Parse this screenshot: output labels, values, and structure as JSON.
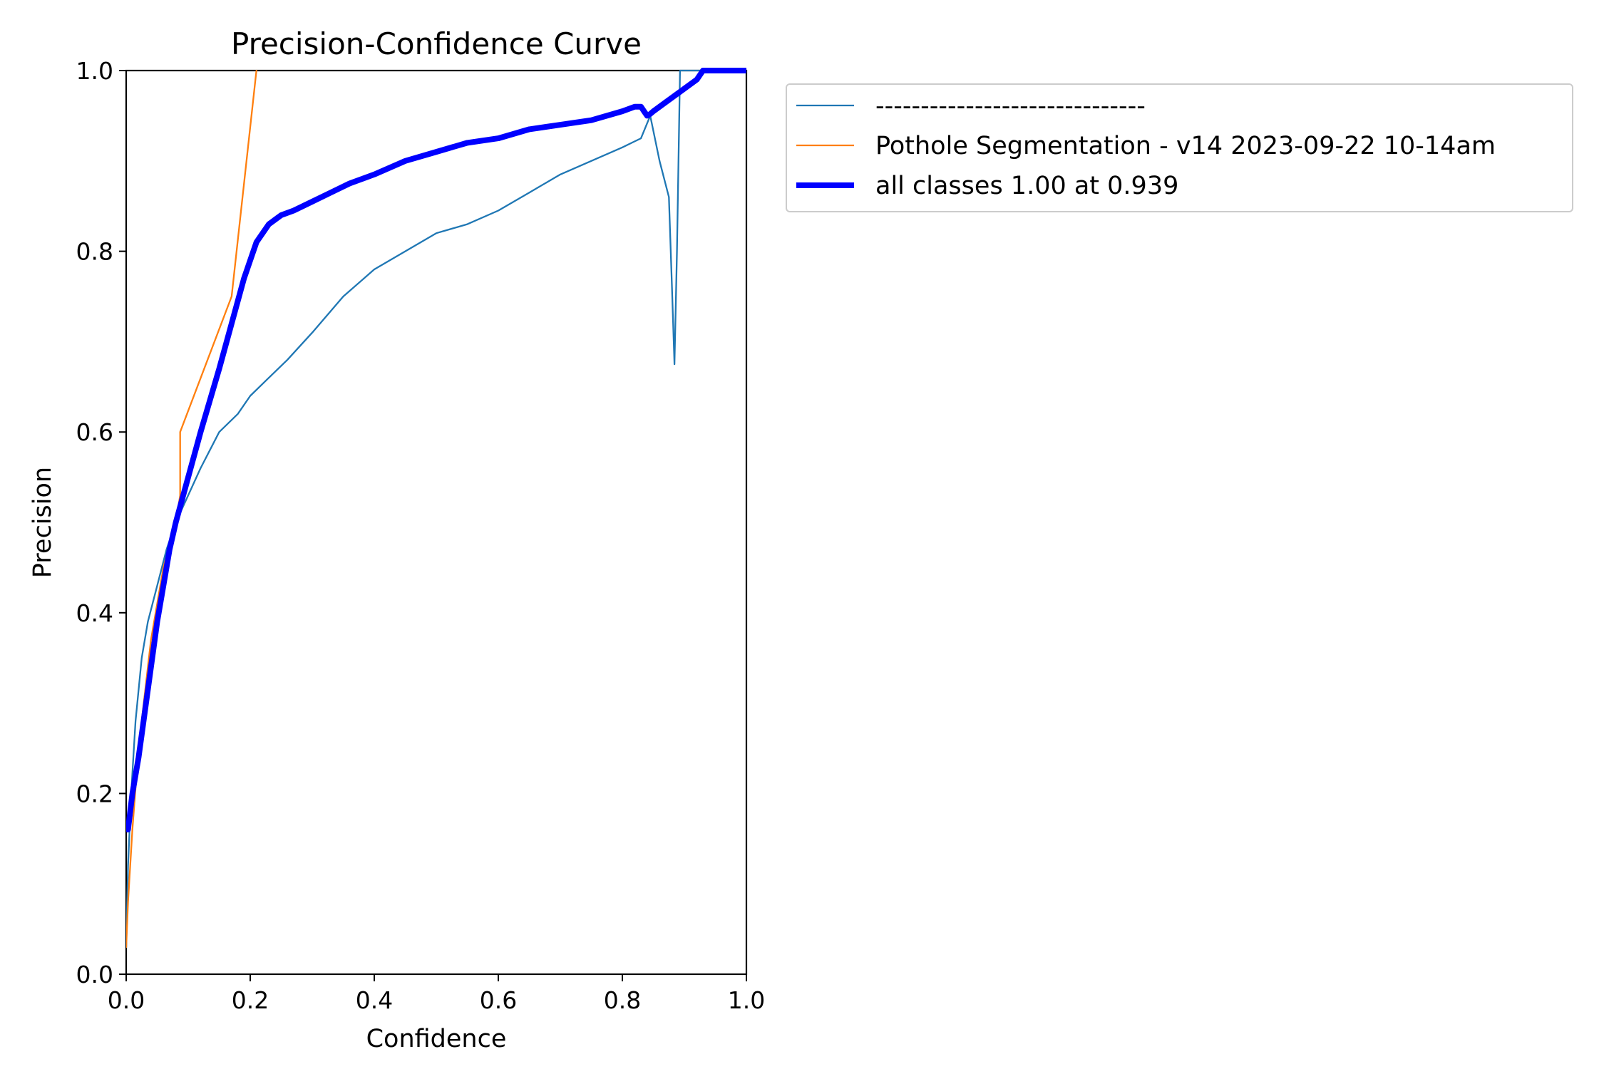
{
  "chart_data": {
    "type": "line",
    "title": "Precision-Confidence Curve",
    "xlabel": "Confidence",
    "ylabel": "Precision",
    "xlim": [
      0.0,
      1.0
    ],
    "ylim": [
      0.0,
      1.0
    ],
    "xticks": [
      "0.0",
      "0.2",
      "0.4",
      "0.6",
      "0.8",
      "1.0"
    ],
    "yticks": [
      "0.0",
      "0.2",
      "0.4",
      "0.6",
      "0.8",
      "1.0"
    ],
    "grid": false,
    "legend_position": "outside upper right",
    "series": [
      {
        "name": "------------------------------",
        "color": "#1f77b4",
        "x": [
          0.0,
          0.003,
          0.008,
          0.015,
          0.025,
          0.035,
          0.05,
          0.065,
          0.08,
          0.1,
          0.12,
          0.15,
          0.18,
          0.2,
          0.23,
          0.26,
          0.3,
          0.35,
          0.4,
          0.45,
          0.5,
          0.55,
          0.6,
          0.65,
          0.7,
          0.75,
          0.8,
          0.83,
          0.845,
          0.86,
          0.875,
          0.88,
          0.884,
          0.888,
          0.893,
          0.9,
          0.95,
          1.0
        ],
        "y": [
          0.03,
          0.12,
          0.2,
          0.28,
          0.35,
          0.39,
          0.43,
          0.47,
          0.5,
          0.53,
          0.56,
          0.6,
          0.62,
          0.64,
          0.66,
          0.68,
          0.71,
          0.75,
          0.78,
          0.8,
          0.82,
          0.83,
          0.845,
          0.865,
          0.885,
          0.9,
          0.915,
          0.925,
          0.95,
          0.9,
          0.86,
          0.76,
          0.675,
          0.8,
          1.0,
          1.0,
          1.0,
          1.0
        ]
      },
      {
        "name": "Pothole Segmentation - v14 2023-09-22 10-14am",
        "color": "#ff7f0e",
        "x": [
          0.0,
          0.003,
          0.01,
          0.02,
          0.04,
          0.06,
          0.08,
          0.087,
          0.087,
          0.17,
          0.21
        ],
        "y": [
          0.03,
          0.08,
          0.16,
          0.25,
          0.37,
          0.45,
          0.5,
          0.53,
          0.6,
          0.75,
          1.0
        ]
      },
      {
        "name": "all classes 1.00 at 0.939",
        "color": "#0000ff",
        "x": [
          0.003,
          0.01,
          0.02,
          0.03,
          0.04,
          0.05,
          0.06,
          0.07,
          0.08,
          0.09,
          0.1,
          0.12,
          0.15,
          0.17,
          0.19,
          0.21,
          0.23,
          0.25,
          0.27,
          0.3,
          0.33,
          0.36,
          0.4,
          0.45,
          0.5,
          0.55,
          0.6,
          0.65,
          0.7,
          0.75,
          0.8,
          0.82,
          0.83,
          0.835,
          0.84,
          0.845,
          0.85,
          0.87,
          0.9,
          0.92,
          0.93,
          0.94,
          1.0
        ],
        "y": [
          0.16,
          0.2,
          0.24,
          0.29,
          0.34,
          0.39,
          0.43,
          0.47,
          0.5,
          0.525,
          0.55,
          0.6,
          0.67,
          0.72,
          0.77,
          0.81,
          0.83,
          0.84,
          0.845,
          0.855,
          0.865,
          0.875,
          0.885,
          0.9,
          0.91,
          0.92,
          0.925,
          0.935,
          0.94,
          0.945,
          0.955,
          0.96,
          0.96,
          0.955,
          0.95,
          0.952,
          0.955,
          0.965,
          0.98,
          0.99,
          1.0,
          1.0,
          1.0
        ]
      }
    ]
  }
}
